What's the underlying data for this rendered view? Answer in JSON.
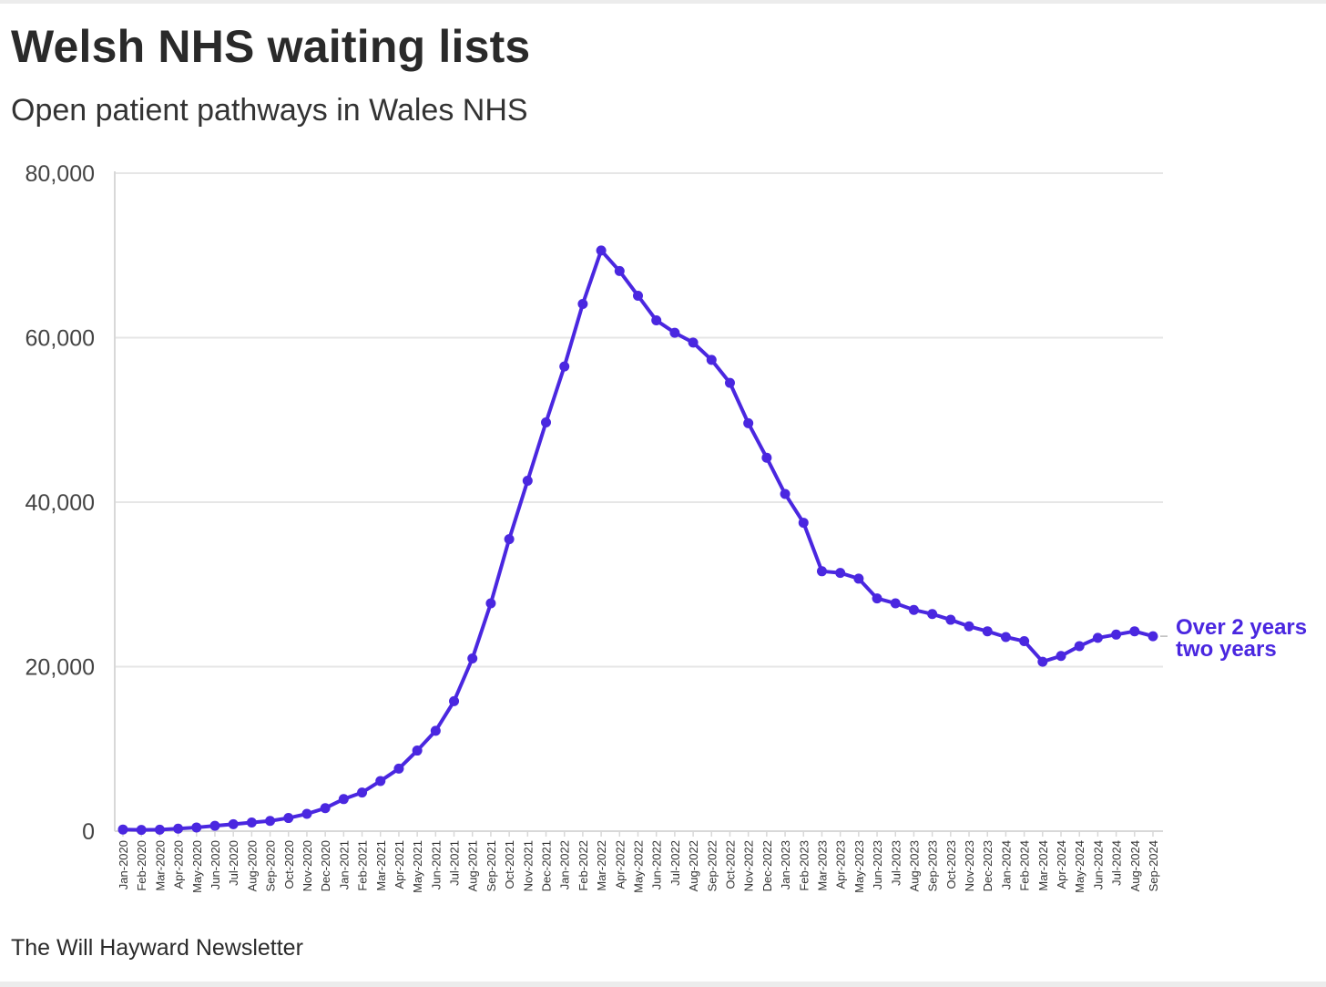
{
  "title": "Welsh NHS waiting lists",
  "subtitle": "Open patient pathways in Wales NHS",
  "source": "The Will Hayward Newsletter",
  "colors": {
    "series": "#4a27e0",
    "grid": "#e6e6e6",
    "axis": "#d8d8d8"
  },
  "chart_data": {
    "type": "line",
    "title": "Welsh NHS waiting lists",
    "subtitle": "Open patient pathways in Wales NHS",
    "xlabel": "",
    "ylabel": "",
    "ylim": [
      0,
      80000
    ],
    "yticks": [
      0,
      20000,
      40000,
      60000,
      80000
    ],
    "ytick_labels": [
      "0",
      "20,000",
      "40,000",
      "60,000",
      "80,000"
    ],
    "grid": true,
    "x": [
      "Jan-2020",
      "Feb-2020",
      "Mar-2020",
      "Apr-2020",
      "May-2020",
      "Jun-2020",
      "Jul-2020",
      "Aug-2020",
      "Sep-2020",
      "Oct-2020",
      "Nov-2020",
      "Dec-2020",
      "Jan-2021",
      "Feb-2021",
      "Mar-2021",
      "Apr-2021",
      "May-2021",
      "Jun-2021",
      "Jul-2021",
      "Aug-2021",
      "Sep-2021",
      "Oct-2021",
      "Nov-2021",
      "Dec-2021",
      "Jan-2022",
      "Feb-2022",
      "Mar-2022",
      "Apr-2022",
      "May-2022",
      "Jun-2022",
      "Jul-2022",
      "Aug-2022",
      "Sep-2022",
      "Oct-2022",
      "Nov-2022",
      "Dec-2022",
      "Jan-2023",
      "Feb-2023",
      "Mar-2023",
      "Apr-2023",
      "May-2023",
      "Jun-2023",
      "Jul-2023",
      "Aug-2023",
      "Sep-2023",
      "Oct-2023",
      "Nov-2023",
      "Dec-2023",
      "Jan-2024",
      "Feb-2024",
      "Mar-2024",
      "Apr-2024",
      "May-2024",
      "Jun-2024",
      "Jul-2024",
      "Aug-2024",
      "Sep-2024"
    ],
    "series": [
      {
        "name": "Over 2 years two years",
        "label_lines": [
          "Over 2 years",
          "two years"
        ],
        "values": [
          200,
          150,
          180,
          300,
          450,
          650,
          850,
          1050,
          1250,
          1600,
          2100,
          2800,
          3900,
          4700,
          6100,
          7600,
          9800,
          12200,
          15800,
          21000,
          27700,
          35500,
          42600,
          49700,
          56500,
          64100,
          70600,
          68100,
          65100,
          62100,
          60600,
          59400,
          57300,
          54500,
          49600,
          45400,
          41000,
          37500,
          31600,
          31400,
          30700,
          28300,
          27700,
          26900,
          26400,
          25700,
          24900,
          24300,
          23600,
          23100,
          20600,
          21300,
          22500,
          23500,
          23900,
          24300,
          23700
        ]
      }
    ]
  }
}
